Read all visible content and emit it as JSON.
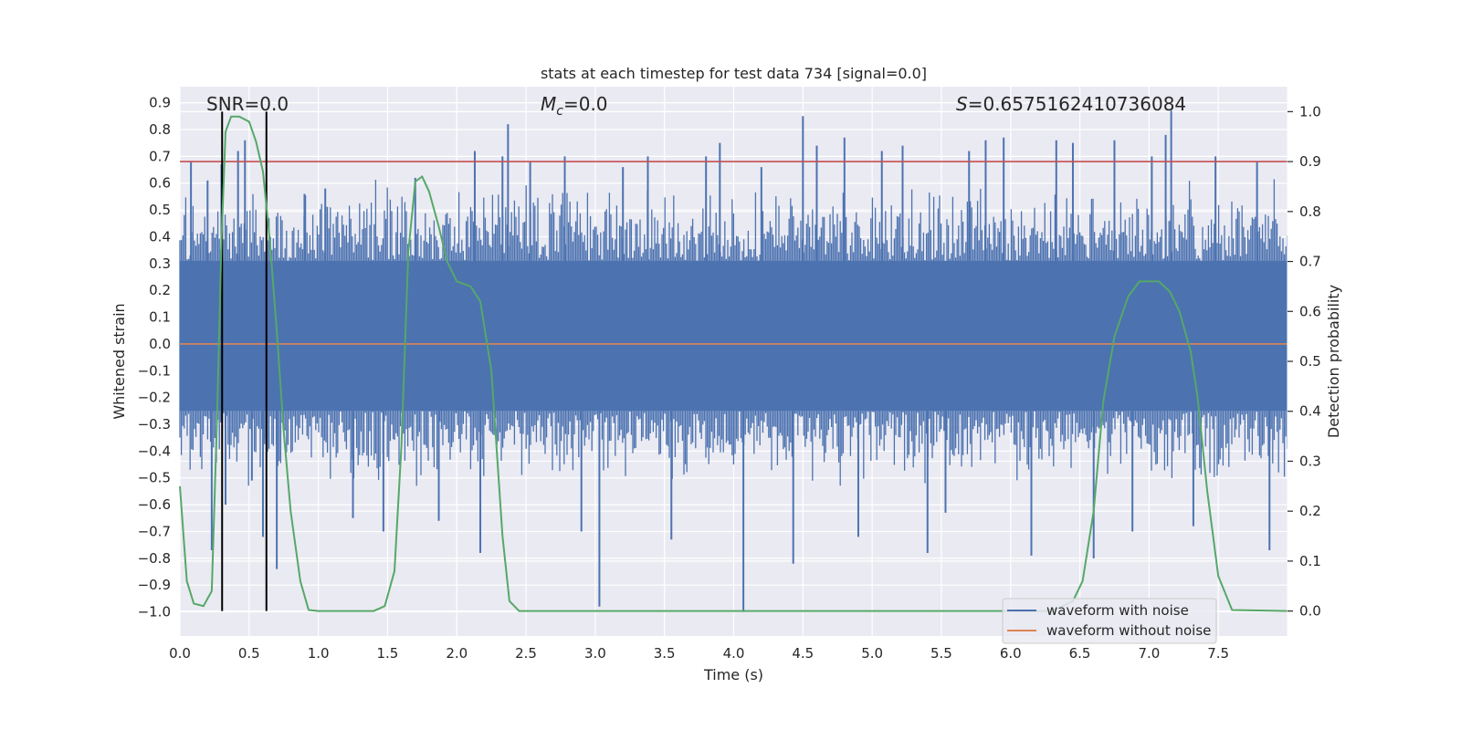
{
  "chart_data": {
    "type": "line",
    "title": "stats at each timestep for test data 734 [signal=0.0]",
    "xlabel": "Time (s)",
    "ylabel": "Whitened strain",
    "y2label": "Detection probability",
    "xlim": [
      0.0,
      8.0
    ],
    "ylim": [
      -1.09,
      0.96
    ],
    "y2lim": [
      -0.05,
      1.05
    ],
    "x_ticks": [
      0.0,
      0.5,
      1.0,
      1.5,
      2.0,
      2.5,
      3.0,
      3.5,
      4.0,
      4.5,
      5.0,
      5.5,
      6.0,
      6.5,
      7.0,
      7.5
    ],
    "x_tick_labels": [
      "0.0",
      "0.5",
      "1.0",
      "1.5",
      "2.0",
      "2.5",
      "3.0",
      "3.5",
      "4.0",
      "4.5",
      "5.0",
      "5.5",
      "6.0",
      "6.5",
      "7.0",
      "7.5"
    ],
    "y_ticks": [
      0.9,
      0.8,
      0.7,
      0.6,
      0.5,
      0.4,
      0.3,
      0.2,
      0.1,
      0.0,
      -0.1,
      -0.2,
      -0.3,
      -0.4,
      -0.5,
      -0.6,
      -0.7,
      -0.8,
      -0.9,
      -1.0
    ],
    "y_tick_labels": [
      "0.9",
      "0.8",
      "0.7",
      "0.6",
      "0.5",
      "0.4",
      "0.3",
      "0.2",
      "0.1",
      "0.0",
      "−0.1",
      "−0.2",
      "−0.3",
      "−0.4",
      "−0.5",
      "−0.6",
      "−0.7",
      "−0.8",
      "−0.9",
      "−1.0"
    ],
    "y2_ticks": [
      1.0,
      0.9,
      0.8,
      0.7,
      0.6,
      0.5,
      0.4,
      0.3,
      0.2,
      0.1,
      0.0
    ],
    "y2_tick_labels": [
      "1.0",
      "0.9",
      "0.8",
      "0.7",
      "0.6",
      "0.5",
      "0.4",
      "0.3",
      "0.2",
      "0.1",
      "0.0"
    ],
    "annotations": {
      "snr": "SNR=0.0",
      "mc_symbol": "M",
      "mc_sub": "c",
      "mc_value": "=0.0",
      "s_symbol": "S",
      "s_value": "=0.6575162410736084"
    },
    "legend": {
      "position": "lower-right",
      "entries": [
        {
          "label": "waveform with noise",
          "color": "#4c72b0"
        },
        {
          "label": "waveform without noise",
          "color": "#dd8452"
        }
      ]
    },
    "threshold_line": {
      "y2": 0.9,
      "color": "#c44e52"
    },
    "vertical_lines": [
      {
        "x": 0.305
      },
      {
        "x": 0.625
      }
    ],
    "vertical_lines_y2_range": [
      0.0,
      1.0
    ],
    "noisy_waveform": {
      "color": "#4c72b0",
      "dense_band": [
        -0.25,
        0.31
      ],
      "typical_envelope": [
        -0.45,
        0.52
      ],
      "spikes": [
        [
          0.08,
          0.68
        ],
        [
          0.2,
          0.61
        ],
        [
          0.23,
          -0.77
        ],
        [
          0.3,
          0.67
        ],
        [
          0.33,
          -0.6
        ],
        [
          0.42,
          0.72
        ],
        [
          0.47,
          0.76
        ],
        [
          0.52,
          -0.51
        ],
        [
          0.6,
          -0.72
        ],
        [
          0.7,
          -0.84
        ],
        [
          0.9,
          0.56
        ],
        [
          1.05,
          0.58
        ],
        [
          1.25,
          -0.65
        ],
        [
          1.47,
          -0.7
        ],
        [
          1.7,
          0.62
        ],
        [
          1.87,
          -0.66
        ],
        [
          2.13,
          0.72
        ],
        [
          2.17,
          -0.78
        ],
        [
          2.33,
          0.7
        ],
        [
          2.37,
          0.82
        ],
        [
          2.53,
          0.68
        ],
        [
          2.78,
          0.7
        ],
        [
          2.9,
          -0.7
        ],
        [
          3.03,
          -0.98
        ],
        [
          3.2,
          0.66
        ],
        [
          3.38,
          0.7
        ],
        [
          3.55,
          -0.73
        ],
        [
          3.8,
          0.7
        ],
        [
          3.9,
          0.75
        ],
        [
          4.07,
          -1.0
        ],
        [
          4.2,
          0.66
        ],
        [
          4.43,
          -0.82
        ],
        [
          4.5,
          0.85
        ],
        [
          4.6,
          0.74
        ],
        [
          4.8,
          0.77
        ],
        [
          4.9,
          -0.72
        ],
        [
          5.07,
          0.72
        ],
        [
          5.22,
          0.74
        ],
        [
          5.4,
          -0.78
        ],
        [
          5.53,
          -0.63
        ],
        [
          5.7,
          0.72
        ],
        [
          5.82,
          0.76
        ],
        [
          5.95,
          0.77
        ],
        [
          6.15,
          -0.79
        ],
        [
          6.33,
          0.76
        ],
        [
          6.45,
          0.75
        ],
        [
          6.6,
          -0.8
        ],
        [
          6.75,
          0.76
        ],
        [
          6.88,
          -0.7
        ],
        [
          7.02,
          0.7
        ],
        [
          7.12,
          0.78
        ],
        [
          7.16,
          0.87
        ],
        [
          7.32,
          -0.68
        ],
        [
          7.48,
          0.7
        ],
        [
          7.78,
          0.68
        ],
        [
          7.87,
          -0.77
        ]
      ]
    },
    "clean_waveform": {
      "color": "#dd8452",
      "value": 0.0
    },
    "detection_probability": {
      "color": "#55a868",
      "x": [
        0.0,
        0.05,
        0.1,
        0.17,
        0.23,
        0.27,
        0.3,
        0.33,
        0.37,
        0.43,
        0.5,
        0.55,
        0.6,
        0.65,
        0.7,
        0.75,
        0.8,
        0.87,
        0.93,
        1.0,
        1.2,
        1.4,
        1.48,
        1.55,
        1.6,
        1.65,
        1.7,
        1.75,
        1.8,
        1.87,
        1.93,
        2.0,
        2.1,
        2.17,
        2.25,
        2.33,
        2.38,
        2.45,
        2.6,
        3.0,
        4.0,
        5.0,
        5.4,
        6.0,
        6.3,
        6.45,
        6.52,
        6.6,
        6.67,
        6.75,
        6.85,
        6.93,
        7.0,
        7.07,
        7.15,
        7.22,
        7.3,
        7.35,
        7.42,
        7.5,
        7.6,
        8.0
      ],
      "y": [
        0.25,
        0.06,
        0.015,
        0.01,
        0.04,
        0.4,
        0.74,
        0.96,
        0.99,
        0.99,
        0.98,
        0.94,
        0.88,
        0.74,
        0.56,
        0.36,
        0.2,
        0.06,
        0.002,
        0.0,
        0.0,
        0.0,
        0.01,
        0.08,
        0.33,
        0.72,
        0.86,
        0.87,
        0.84,
        0.77,
        0.7,
        0.66,
        0.65,
        0.62,
        0.48,
        0.15,
        0.02,
        0.0,
        0.0,
        0.0,
        0.0,
        0.0,
        0.0,
        0.0,
        0.0,
        0.02,
        0.06,
        0.2,
        0.42,
        0.55,
        0.63,
        0.66,
        0.66,
        0.66,
        0.64,
        0.6,
        0.52,
        0.43,
        0.24,
        0.07,
        0.002,
        0.0
      ]
    }
  }
}
